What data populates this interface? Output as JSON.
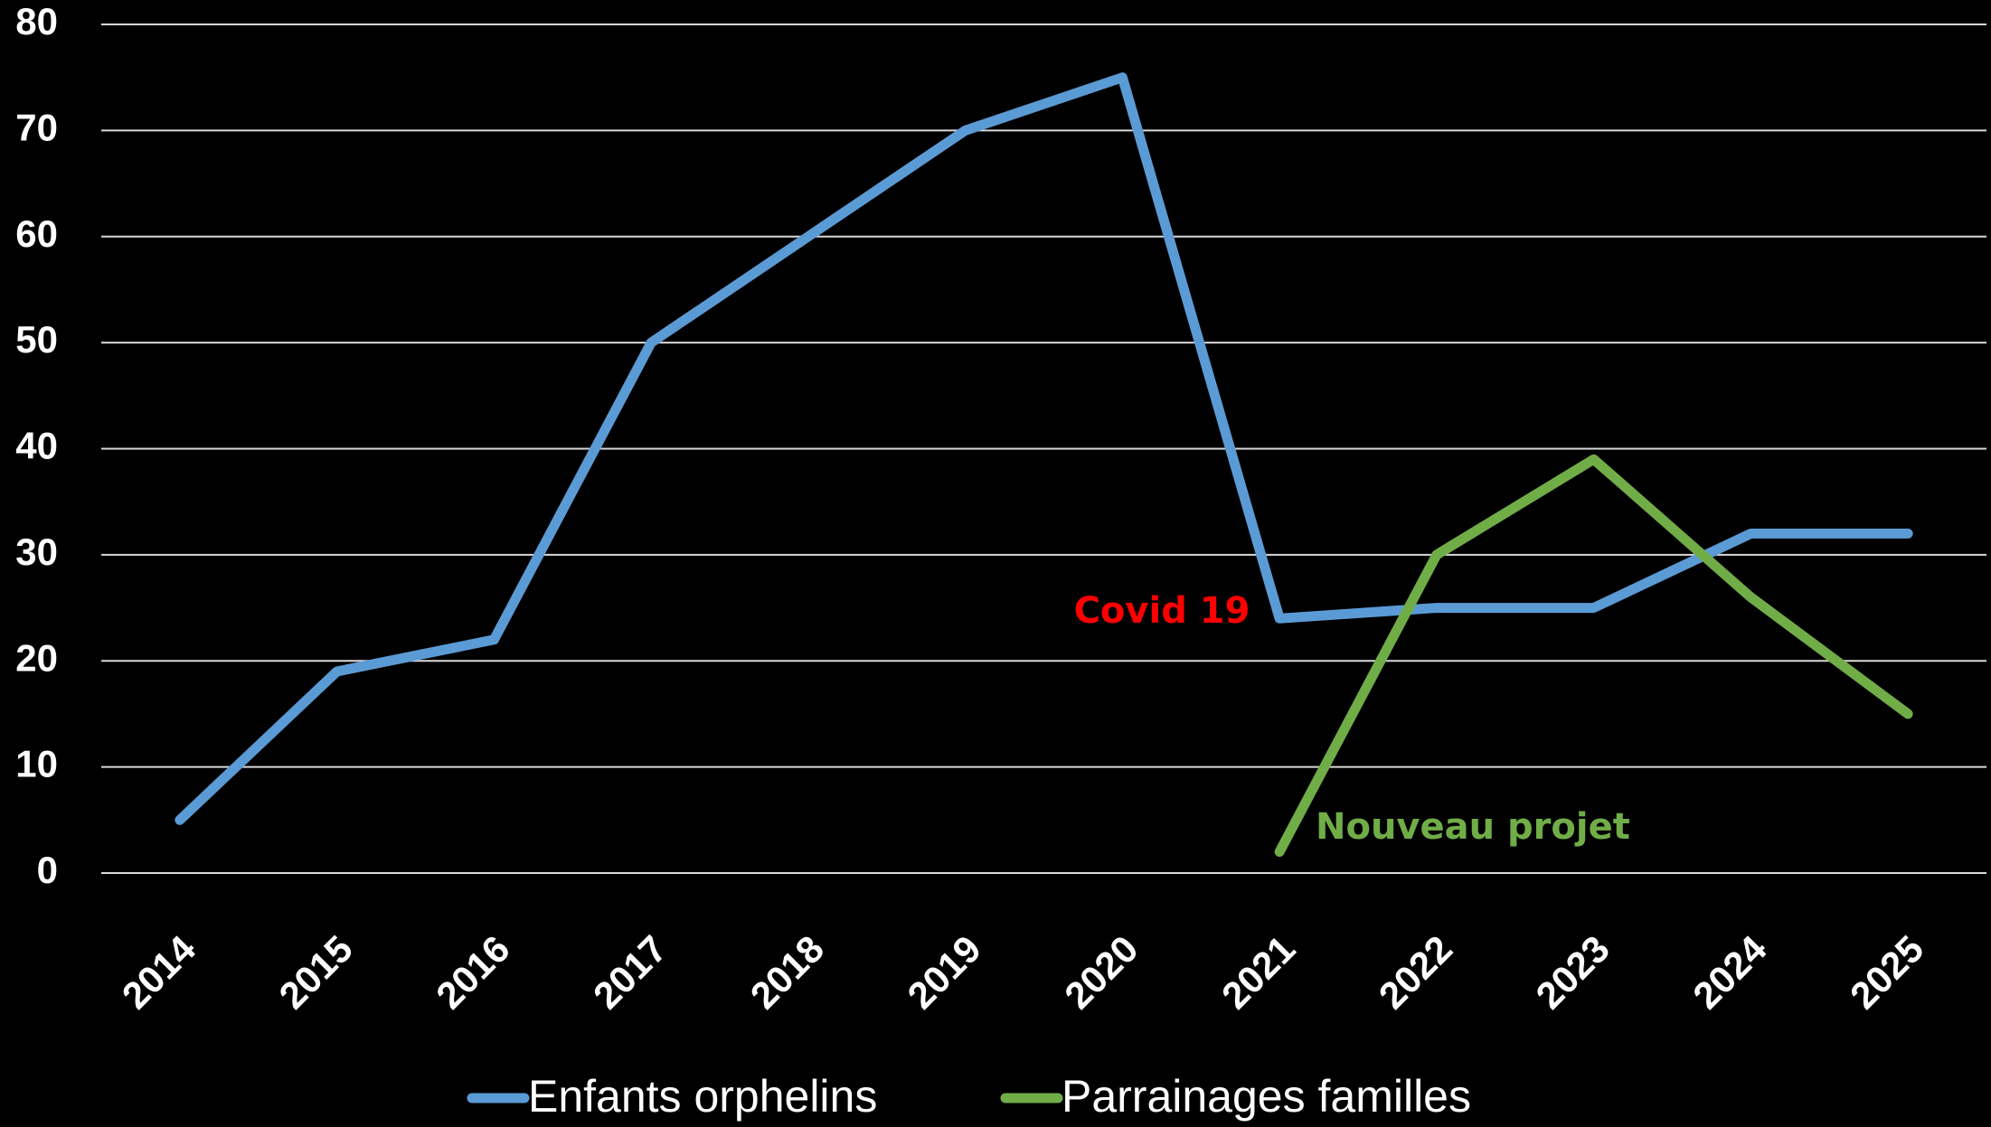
{
  "chart_data": {
    "type": "line",
    "categories": [
      "2014",
      "2015",
      "2016",
      "2017",
      "2018",
      "2019",
      "2020",
      "2021",
      "2022",
      "2023",
      "2024",
      "2025"
    ],
    "series": [
      {
        "name": "Enfants orphelins",
        "color": "#5b9bd5",
        "values": [
          5,
          19,
          22,
          50,
          60,
          70,
          75,
          24,
          25,
          25,
          32,
          32
        ]
      },
      {
        "name": "Parrainages familles",
        "color": "#70ad47",
        "values": [
          null,
          null,
          null,
          null,
          null,
          null,
          null,
          2,
          30,
          39,
          26,
          15
        ]
      }
    ],
    "annotations": [
      {
        "text": "Covid 19",
        "color": "#ff0000"
      },
      {
        "text": "Nouveau projet",
        "color": "#70ad47"
      }
    ],
    "ylim": [
      0,
      80
    ],
    "yticks": [
      0,
      10,
      20,
      30,
      40,
      50,
      60,
      70,
      80
    ],
    "grid": true,
    "legend": "bottom"
  }
}
